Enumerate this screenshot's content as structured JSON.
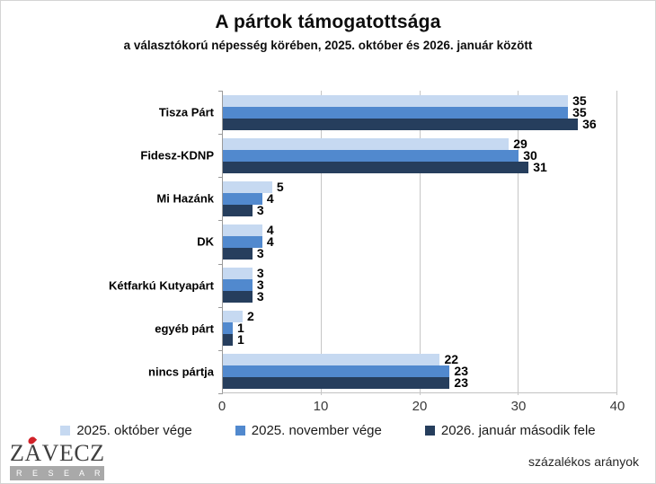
{
  "title": "A pártok támogatottsága",
  "subtitle": "a választókorú népesség körében, 2025. október és 2026. január között",
  "footer": {
    "note": "százalékos arányok",
    "logo_name": "Z",
    "logo_name_a": "A",
    "logo_name_rest": "VECZ",
    "logo_sub": "R E S E A R C H"
  },
  "colors": {
    "series": [
      "#c6d9f1",
      "#5189ce",
      "#263e5d"
    ],
    "grid": "#c6c6c6",
    "axis": "#9a9a9a",
    "logo_accent": "#d12229",
    "logo_bar": "#a9a9a9"
  },
  "chart_data": {
    "type": "bar",
    "orientation": "horizontal",
    "title": "A pártok támogatottsága",
    "subtitle": "a választókorú népesség körében, 2025. október és 2026. január között",
    "categories": [
      "Tisza Párt",
      "Fidesz-KDNP",
      "Mi Hazánk",
      "DK",
      "Kétfarkú Kutyapárt",
      "egyéb párt",
      "nincs pártja"
    ],
    "series": [
      {
        "name": "2025. október vége",
        "color": "#c6d9f1",
        "values": [
          35,
          29,
          5,
          4,
          3,
          2,
          22
        ]
      },
      {
        "name": "2025. november vége",
        "color": "#5189ce",
        "values": [
          35,
          30,
          4,
          4,
          3,
          1,
          23
        ]
      },
      {
        "name": "2026. január második fele",
        "color": "#263e5d",
        "values": [
          36,
          31,
          3,
          3,
          3,
          1,
          23
        ]
      }
    ],
    "xlabel": "",
    "ylabel": "",
    "xlim": [
      0,
      40
    ],
    "xticks": [
      0,
      10,
      20,
      30,
      40
    ],
    "grid": true,
    "legend_position": "bottom",
    "value_labels": true,
    "units": "százalékos arányok"
  }
}
